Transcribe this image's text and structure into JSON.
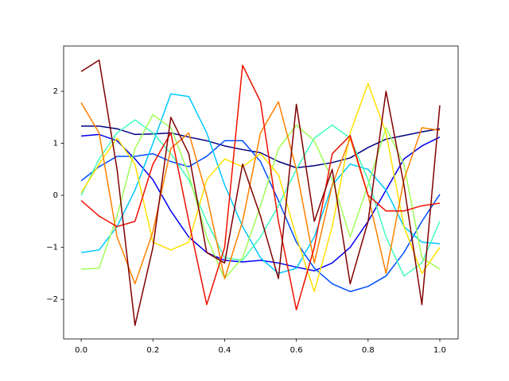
{
  "chart_data": {
    "type": "line",
    "x": [
      0,
      0.05,
      0.1,
      0.15,
      0.2,
      0.25,
      0.3,
      0.35,
      0.4,
      0.45,
      0.5,
      0.55,
      0.6,
      0.65,
      0.7,
      0.75,
      0.8,
      0.85,
      0.9,
      0.95,
      1.0
    ],
    "series": [
      {
        "color": "#000080",
        "values": [
          1.33,
          1.33,
          1.28,
          1.17,
          1.18,
          1.2,
          1.12,
          1.05,
          0.95,
          0.88,
          0.82,
          0.65,
          0.53,
          0.57,
          0.63,
          0.72,
          0.92,
          1.08,
          1.15,
          1.22,
          1.28
        ]
      },
      {
        "color": "#0000f1",
        "values": [
          1.14,
          1.17,
          1.05,
          0.7,
          0.3,
          -0.3,
          -0.8,
          -1.1,
          -1.25,
          -1.28,
          -1.25,
          -1.3,
          -1.38,
          -1.45,
          -1.3,
          -1.0,
          -0.5,
          0.1,
          0.7,
          0.95,
          1.12
        ]
      },
      {
        "color": "#004dff",
        "values": [
          0.28,
          0.55,
          0.75,
          0.75,
          0.8,
          0.65,
          0.55,
          0.75,
          1.05,
          1.05,
          0.65,
          -0.1,
          -0.9,
          -1.4,
          -1.7,
          -1.85,
          -1.75,
          -1.55,
          -1.1,
          -0.5,
          0.02
        ]
      },
      {
        "color": "#00c8ff",
        "values": [
          -1.1,
          -1.05,
          -0.6,
          0.1,
          1.0,
          1.95,
          1.9,
          1.2,
          0.2,
          -0.6,
          -1.2,
          -1.5,
          -1.4,
          -0.8,
          0.2,
          0.6,
          0.5,
          0.1,
          -0.6,
          -0.9,
          -0.93
        ]
      },
      {
        "color": "#40ffb7",
        "values": [
          0.0,
          0.7,
          1.2,
          1.45,
          1.2,
          0.8,
          0.3,
          -0.5,
          -1.2,
          -1.25,
          -0.8,
          -0.2,
          0.5,
          1.1,
          1.35,
          1.1,
          0.3,
          -0.8,
          -1.55,
          -1.3,
          -0.5
        ]
      },
      {
        "color": "#a0ff56",
        "values": [
          -1.42,
          -1.4,
          -0.4,
          0.9,
          1.55,
          1.3,
          0.4,
          -0.8,
          -1.6,
          -1.2,
          -0.2,
          0.9,
          1.35,
          1.05,
          0.3,
          -0.8,
          0.2,
          1.3,
          0.6,
          -1.2,
          -1.42
        ]
      },
      {
        "color": "#ffe000",
        "values": [
          0.05,
          0.6,
          1.1,
          0.6,
          -0.9,
          -1.05,
          -0.9,
          0.3,
          0.7,
          0.55,
          0.8,
          0.4,
          -0.8,
          -1.85,
          -0.6,
          1.2,
          2.15,
          1.2,
          -0.6,
          -1.5,
          -1.0
        ]
      },
      {
        "color": "#ff8000",
        "values": [
          1.78,
          1.2,
          -0.8,
          -1.7,
          -0.7,
          0.9,
          1.2,
          0.0,
          -1.6,
          -0.5,
          1.2,
          1.8,
          0.5,
          -1.3,
          0.2,
          1.1,
          0.0,
          -1.5,
          0.3,
          1.3,
          1.25
        ]
      },
      {
        "color": "#f01000",
        "values": [
          -0.1,
          -0.4,
          -0.6,
          -0.5,
          0.6,
          1.2,
          -0.5,
          -2.1,
          -1.0,
          2.5,
          1.8,
          -0.5,
          -2.2,
          -1.0,
          0.8,
          1.15,
          0.0,
          -0.3,
          -0.3,
          -0.2,
          -0.15
        ]
      },
      {
        "color": "#800000",
        "values": [
          2.38,
          2.6,
          0.5,
          -2.5,
          -1.0,
          1.5,
          0.8,
          -1.1,
          -1.3,
          0.6,
          -0.4,
          -1.6,
          1.75,
          -0.5,
          0.5,
          -1.7,
          -0.5,
          2.0,
          0.2,
          -2.1,
          1.73
        ]
      }
    ],
    "xlim": [
      -0.049,
      1.051
    ],
    "ylim": [
      -2.76,
      2.87
    ],
    "xticks": [
      {
        "value": 0,
        "label": "0.0"
      },
      {
        "value": 0.2,
        "label": "0.2"
      },
      {
        "value": 0.4,
        "label": "0.4"
      },
      {
        "value": 0.6,
        "label": "0.6"
      },
      {
        "value": 0.8,
        "label": "0.8"
      },
      {
        "value": 1.0,
        "label": "1.0"
      }
    ],
    "yticks": [
      {
        "value": -2,
        "label": "−2"
      },
      {
        "value": -1,
        "label": "−1"
      },
      0,
      1,
      2
    ]
  }
}
